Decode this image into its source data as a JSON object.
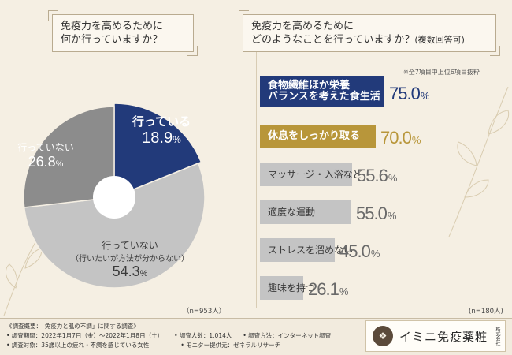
{
  "left": {
    "question": [
      "免疫力を高めるために",
      "何か行っていますか？"
    ],
    "n_label": "（n=953人）"
  },
  "right": {
    "question": [
      "免疫力を高めるために",
      "どのようなことを行っていますか？",
      "(複数回答可)"
    ],
    "note": "※全7項目中上位6項目抜粋",
    "n_label": "(n=180人)"
  },
  "colors": {
    "navy": "#223a7a",
    "gold": "#b8963a",
    "gray": "#bfbfbf",
    "darkgray": "#8c8c8c",
    "bg": "#f5efe3"
  },
  "chart_data": [
    {
      "type": "pie",
      "slices": [
        {
          "label": "行っている",
          "value": 18.9,
          "unit": "%",
          "color": "#223a7a"
        },
        {
          "label": "行っていない（行いたいが方法が分からない）",
          "value": 54.3,
          "unit": "%",
          "color": "#c4c4c4"
        },
        {
          "label": "行っていない",
          "value": 26.8,
          "unit": "%",
          "color": "#8c8c8c"
        }
      ]
    },
    {
      "type": "bar",
      "orientation": "horizontal",
      "categories": [
        "食物繊維ほか栄養バランスを考えた食生活",
        "休息をしっかり取る",
        "マッサージ・入浴など",
        "適度な運動",
        "ストレスを溜めない",
        "趣味を持つ"
      ],
      "values": [
        75.0,
        70.0,
        55.6,
        55.0,
        45.0,
        26.1
      ],
      "unit": "%",
      "colors": [
        "#223a7a",
        "#b8963a",
        "#c4c4c4",
        "#c4c4c4",
        "#c4c4c4",
        "#c4c4c4"
      ]
    }
  ],
  "pie_labels": {
    "s0": {
      "line1": "行っている",
      "num": "18.9",
      "sym": "%"
    },
    "s1": {
      "line1": "行っていない",
      "line2": "（行いたいが方法が分からない）",
      "num": "54.3",
      "sym": "%"
    },
    "s2": {
      "line1": "行っていない",
      "num": "26.8",
      "sym": "%"
    }
  },
  "bars": [
    {
      "label_lines": [
        "食物繊維ほか栄養",
        "バランスを考えた食生活"
      ],
      "num": "75.0",
      "sym": "%"
    },
    {
      "label_lines": [
        "休息をしっかり取る"
      ],
      "num": "70.0",
      "sym": "%"
    },
    {
      "label_lines": [
        "マッサージ・入浴など"
      ],
      "num": "55.6",
      "sym": "%"
    },
    {
      "label_lines": [
        "適度な運動"
      ],
      "num": "55.0",
      "sym": "%"
    },
    {
      "label_lines": [
        "ストレスを溜めない"
      ],
      "num": "45.0",
      "sym": "%"
    },
    {
      "label_lines": [
        "趣味を持つ"
      ],
      "num": "26.1",
      "sym": "%"
    }
  ],
  "footer": {
    "title": "《調査概要：「免疫力と肌の不調」に関する調査》",
    "period": "• 調査期間：2022年1月7日（金）〜2022年1月8日（土）",
    "count": "• 調査人数：1,014人",
    "method": "• 調査方法：インターネット調査",
    "target": "• 調査対象：35歳以上の疲れ・不調を感じている女性",
    "provider": "• モニター提供元：ゼネラルリサーチ"
  },
  "logo": {
    "name": "イミニ免疫薬粧",
    "suffix": "株式会社"
  }
}
